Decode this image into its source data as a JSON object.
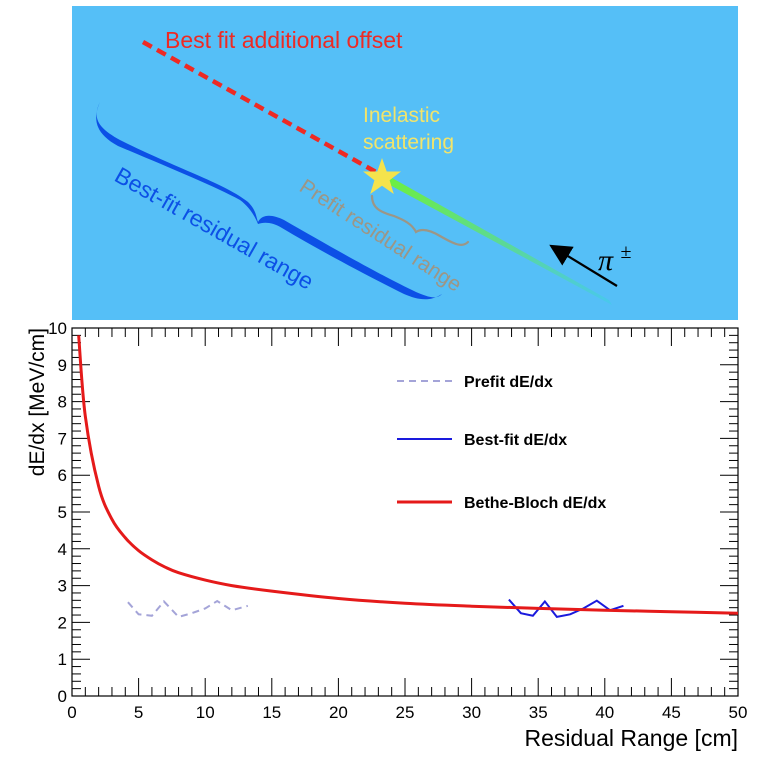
{
  "diagram": {
    "offset_label": "Best fit additional offset",
    "inelastic_line1": "Inelastic",
    "inelastic_line2": "scattering",
    "bestfit_range_label": "Best-fit residual range",
    "prefit_range_label": "Prefit residual range",
    "particle_label": "π",
    "particle_charge": "±",
    "colors": {
      "background": "#55bff7",
      "offset_line": "#ee2a24",
      "star": "#f5e34c",
      "best_brace": "#0c50e6",
      "prefit_brace": "#9c9686",
      "inelastic_text": "#f2e46a",
      "track_start": "#6ef03c",
      "track_end": "#48c8ee"
    }
  },
  "chart_data": {
    "type": "line",
    "xlabel": "Residual Range [cm]",
    "ylabel": "dE/dx [MeV/cm]",
    "xlim": [
      0,
      50
    ],
    "ylim": [
      0,
      10
    ],
    "x_ticks": [
      0,
      5,
      10,
      15,
      20,
      25,
      30,
      35,
      40,
      45,
      50
    ],
    "y_ticks": [
      0,
      1,
      2,
      3,
      4,
      5,
      6,
      7,
      8,
      9,
      10
    ],
    "series": [
      {
        "name": "Prefit dE/dx",
        "style": "dashed",
        "color": "#a4a4d8",
        "x": [
          4.2,
          5.0,
          6.0,
          6.9,
          8.0,
          9.0,
          10.0,
          10.9,
          12.0,
          13.2
        ],
        "y": [
          2.55,
          2.22,
          2.18,
          2.57,
          2.15,
          2.25,
          2.38,
          2.58,
          2.33,
          2.45
        ]
      },
      {
        "name": "Best-fit dE/dx",
        "style": "solid",
        "color": "#1a1add",
        "x": [
          32.8,
          33.7,
          34.6,
          35.5,
          36.4,
          37.4,
          38.4,
          39.4,
          40.4,
          41.4
        ],
        "y": [
          2.62,
          2.25,
          2.18,
          2.57,
          2.15,
          2.22,
          2.38,
          2.59,
          2.33,
          2.45
        ]
      },
      {
        "name": "Bethe-Bloch dE/dx",
        "style": "solid",
        "color": "#e51a1a",
        "x": [
          0.5,
          1,
          2,
          3,
          4,
          5,
          6,
          7,
          8,
          10,
          12,
          15,
          20,
          25,
          30,
          35,
          40,
          45,
          50
        ],
        "y": [
          9.8,
          7.6,
          5.7,
          4.8,
          4.3,
          3.95,
          3.7,
          3.5,
          3.35,
          3.15,
          3.0,
          2.85,
          2.65,
          2.52,
          2.44,
          2.38,
          2.33,
          2.29,
          2.25
        ]
      }
    ],
    "legend": {
      "placement": "top-right"
    }
  }
}
